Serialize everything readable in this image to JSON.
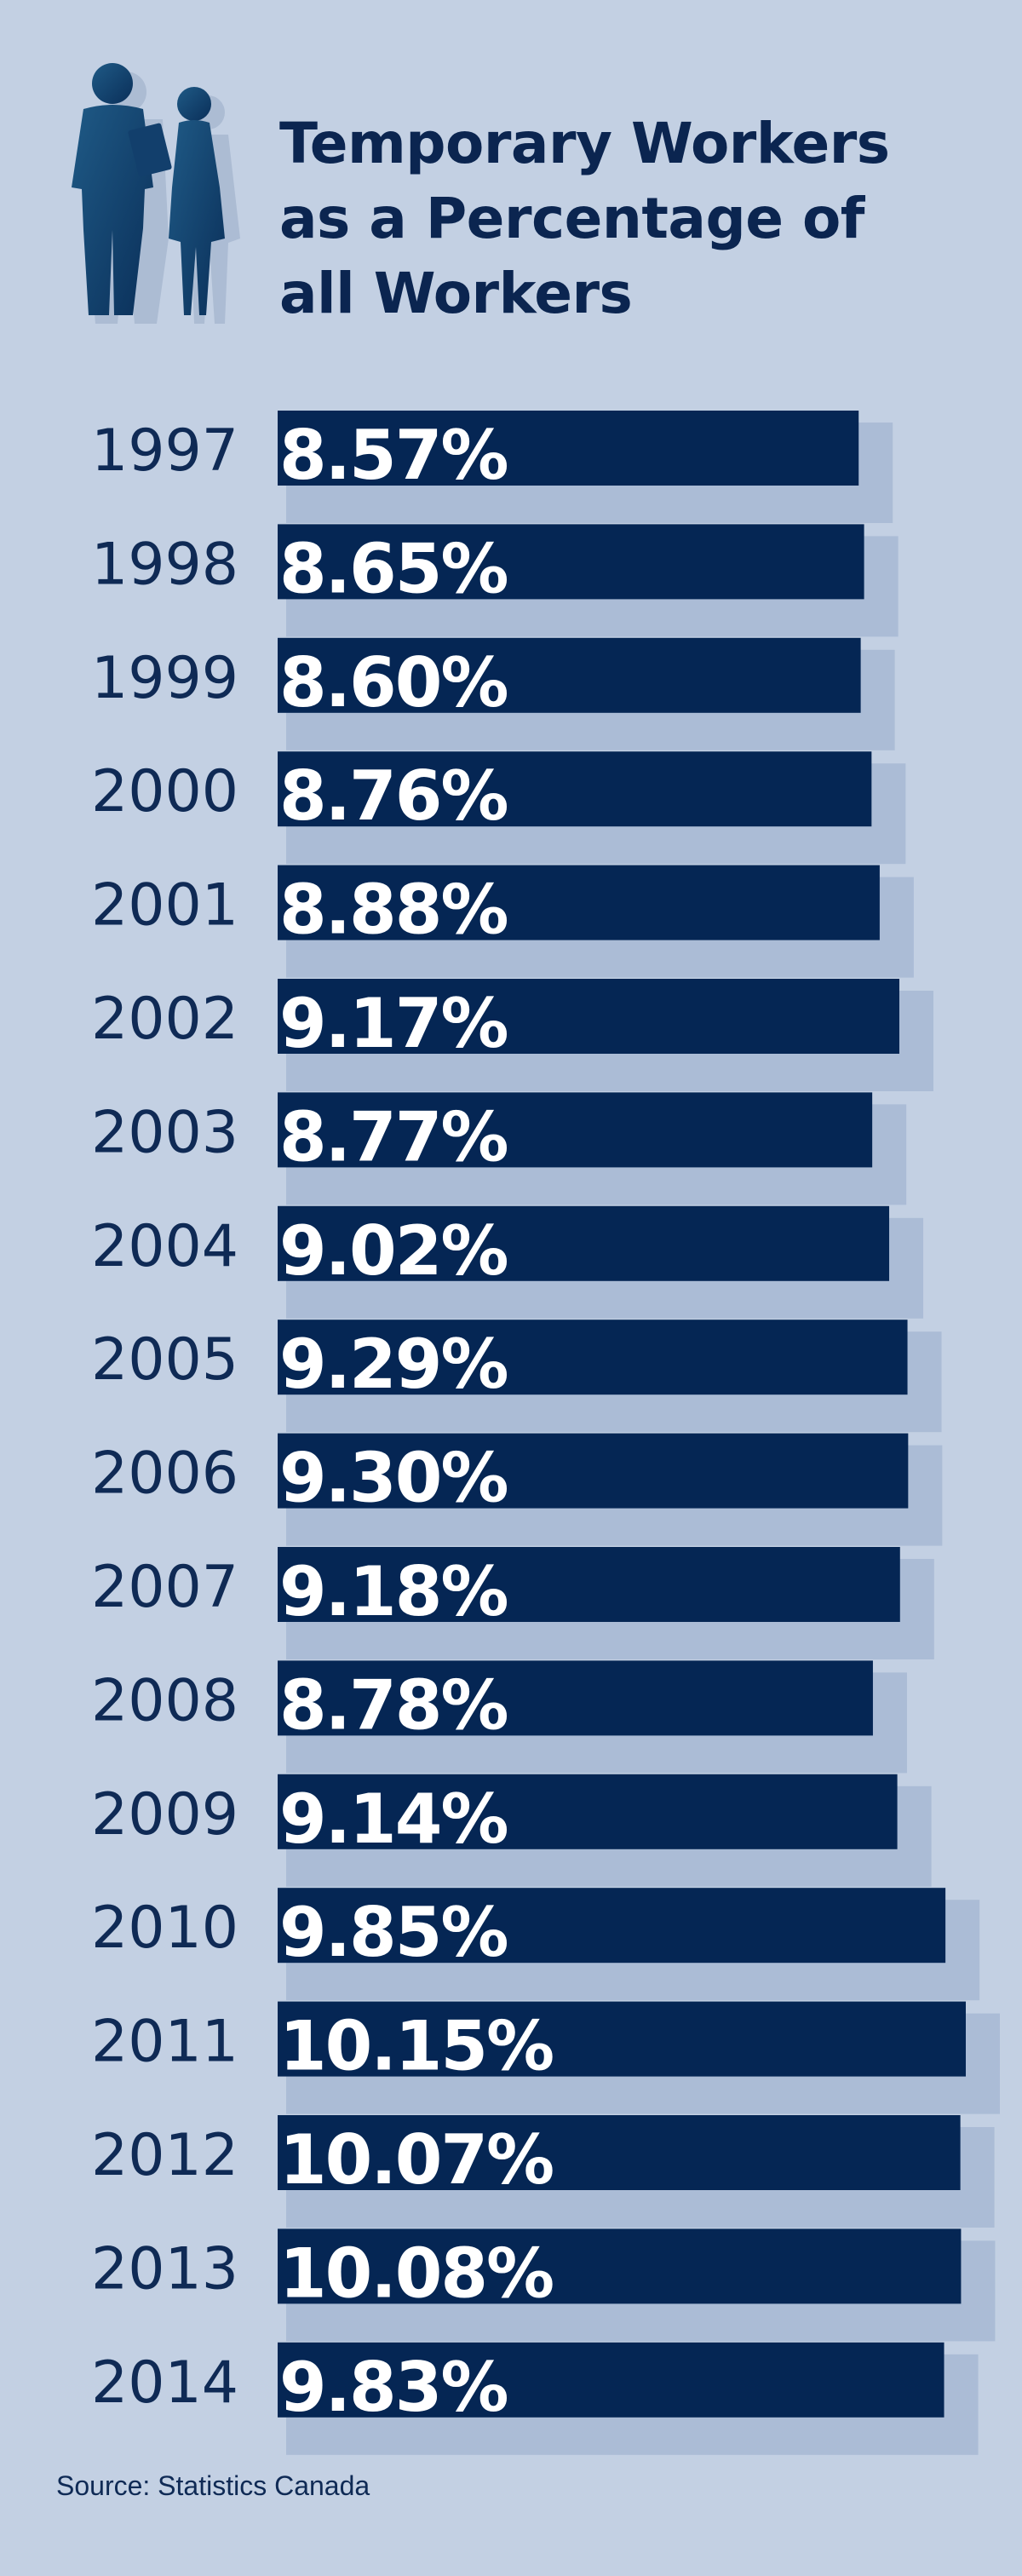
{
  "title": "Temporary Workers\nas a Percentage of\nall Workers",
  "source": "Source: Statistics Canada",
  "icons": {
    "header": "business-people-silhouette-icon"
  },
  "colors": {
    "background": "#c3d0e3",
    "bar": "#052654",
    "text": "#0f2a55",
    "bar_label": "#ffffff"
  },
  "chart_data": {
    "type": "bar",
    "orientation": "horizontal",
    "title": "Temporary Workers as a Percentage of all Workers",
    "categories": [
      "1997",
      "1998",
      "1999",
      "2000",
      "2001",
      "2002",
      "2003",
      "2004",
      "2005",
      "2006",
      "2007",
      "2008",
      "2009",
      "2010",
      "2011",
      "2012",
      "2013",
      "2014"
    ],
    "values": [
      8.57,
      8.65,
      8.6,
      8.76,
      8.88,
      9.17,
      8.77,
      9.02,
      9.29,
      9.3,
      9.18,
      8.78,
      9.14,
      9.85,
      10.15,
      10.07,
      10.08,
      9.83
    ],
    "value_labels": [
      "8.57%",
      "8.65%",
      "8.60%",
      "8.76%",
      "8.88%",
      "9.17%",
      "8.77%",
      "9.02%",
      "9.29%",
      "9.30%",
      "9.18%",
      "8.78%",
      "9.14%",
      "9.85%",
      "10.15%",
      "10.07%",
      "10.08%",
      "9.83%"
    ],
    "unit": "%",
    "xlim": [
      0,
      10.15
    ],
    "grid": false,
    "legend": "none"
  }
}
